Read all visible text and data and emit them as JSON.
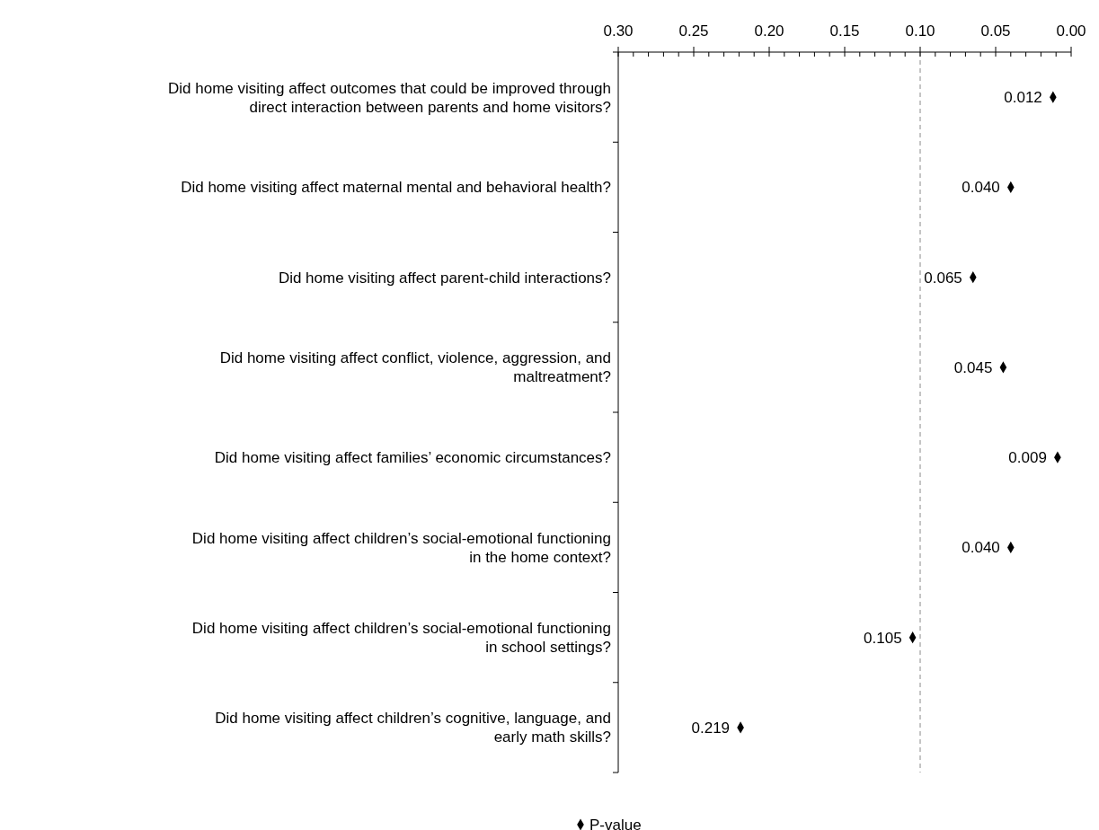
{
  "chart_data": {
    "type": "scatter",
    "orientation": "horizontal",
    "categories": [
      "Did home visiting affect outcomes that could be improved through direct interaction between parents and home visitors?",
      "Did home visiting affect maternal mental and behavioral health?",
      "Did home visiting affect parent-child interactions?",
      "Did home visiting affect conflict, violence, aggression, and maltreatment?",
      "Did home visiting affect families’ economic circumstances?",
      "Did home visiting affect children’s social-emotional functioning in the home context?",
      "Did home visiting affect children’s social-emotional functioning in school settings?",
      "Did home visiting affect children’s cognitive, language, and early math skills?"
    ],
    "series": [
      {
        "name": "P-value",
        "color": "#000000",
        "values": [
          0.012,
          0.04,
          0.065,
          0.045,
          0.009,
          0.04,
          0.105,
          0.219
        ],
        "value_labels": [
          "0.012",
          "0.040",
          "0.065",
          "0.045",
          "0.009",
          "0.040",
          "0.105",
          "0.219"
        ]
      }
    ],
    "xlim": [
      0.3,
      0
    ],
    "xticks": [
      {
        "value": 0.3,
        "label": "0.30"
      },
      {
        "value": 0.29,
        "label": null
      },
      {
        "value": 0.28,
        "label": null
      },
      {
        "value": 0.27,
        "label": null
      },
      {
        "value": 0.26,
        "label": null
      },
      {
        "value": 0.25,
        "label": "0.25"
      },
      {
        "value": 0.24,
        "label": null
      },
      {
        "value": 0.23,
        "label": null
      },
      {
        "value": 0.22,
        "label": null
      },
      {
        "value": 0.21,
        "label": null
      },
      {
        "value": 0.2,
        "label": "0.20"
      },
      {
        "value": 0.19,
        "label": null
      },
      {
        "value": 0.18,
        "label": null
      },
      {
        "value": 0.17,
        "label": null
      },
      {
        "value": 0.16,
        "label": null
      },
      {
        "value": 0.15,
        "label": "0.15"
      },
      {
        "value": 0.14,
        "label": null
      },
      {
        "value": 0.13,
        "label": null
      },
      {
        "value": 0.12,
        "label": null
      },
      {
        "value": 0.11,
        "label": null
      },
      {
        "value": 0.1,
        "label": "0.10"
      },
      {
        "value": 0.09,
        "label": null
      },
      {
        "value": 0.08,
        "label": null
      },
      {
        "value": 0.07,
        "label": null
      },
      {
        "value": 0.06,
        "label": null
      },
      {
        "value": 0.05,
        "label": "0.05"
      },
      {
        "value": 0.04,
        "label": null
      },
      {
        "value": 0.03,
        "label": null
      },
      {
        "value": 0.02,
        "label": null
      },
      {
        "value": 0.01,
        "label": null
      },
      {
        "value": 0,
        "label": "0.00"
      }
    ],
    "ref_lines": [
      {
        "axis": "x",
        "value": 0.1,
        "label": null,
        "color": "#a6a6a6",
        "line_style": "dashed"
      }
    ],
    "marker": "diamond",
    "legend": "bottom"
  }
}
